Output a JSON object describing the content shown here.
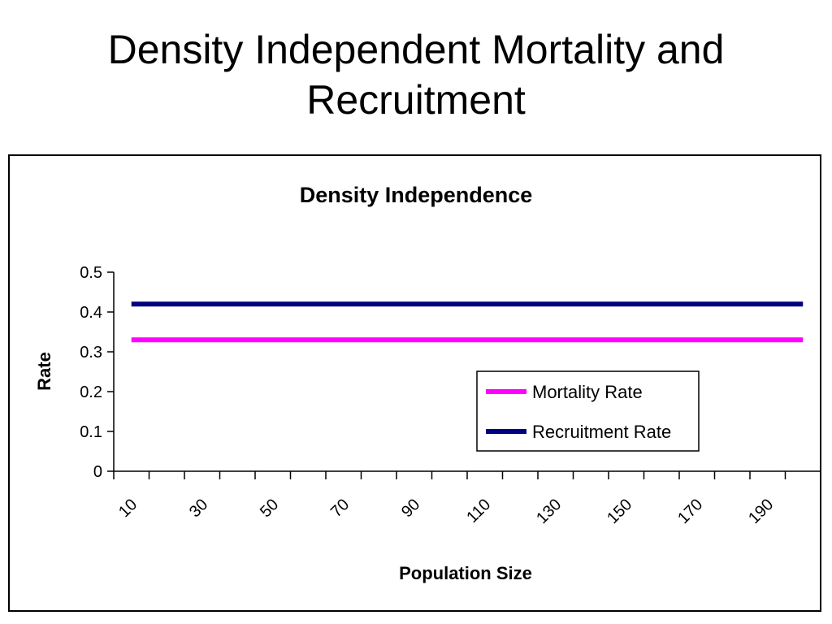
{
  "slide": {
    "title_line1": "Density Independent Mortality and",
    "title_line2": "Recruitment"
  },
  "chart_data": {
    "type": "line",
    "title": "Density Independence",
    "xlabel": "Population Size",
    "ylabel": "Rate",
    "x": [
      10,
      20,
      30,
      40,
      50,
      60,
      70,
      80,
      90,
      100,
      110,
      120,
      130,
      140,
      150,
      160,
      170,
      180,
      190,
      200
    ],
    "x_tick_labels": [
      "10",
      "30",
      "50",
      "70",
      "90",
      "110",
      "130",
      "150",
      "170",
      "190"
    ],
    "y_ticks": [
      "0",
      "0.1",
      "0.2",
      "0.3",
      "0.4",
      "0.5"
    ],
    "ylim": [
      0,
      0.5
    ],
    "grid": false,
    "legend_position": "bottom-right",
    "series": [
      {
        "name": "Mortality Rate",
        "color": "#ff00ff",
        "values": [
          0.33,
          0.33,
          0.33,
          0.33,
          0.33,
          0.33,
          0.33,
          0.33,
          0.33,
          0.33,
          0.33,
          0.33,
          0.33,
          0.33,
          0.33,
          0.33,
          0.33,
          0.33,
          0.33,
          0.33
        ]
      },
      {
        "name": "Recruitment Rate",
        "color": "#000080",
        "values": [
          0.42,
          0.42,
          0.42,
          0.42,
          0.42,
          0.42,
          0.42,
          0.42,
          0.42,
          0.42,
          0.42,
          0.42,
          0.42,
          0.42,
          0.42,
          0.42,
          0.42,
          0.42,
          0.42,
          0.42
        ]
      }
    ]
  }
}
